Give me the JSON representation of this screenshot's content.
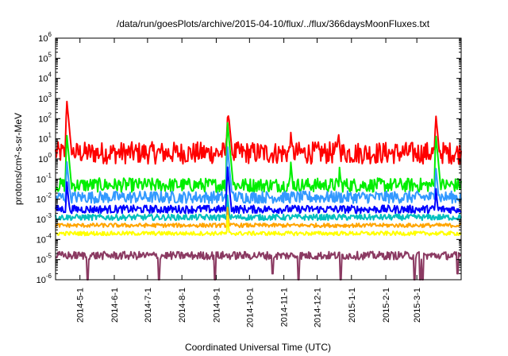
{
  "chart_data": {
    "type": "line",
    "title": "/data/run/goesPlots/archive/2015-04-10/flux/../flux/366daysMoonFluxes.txt",
    "xlabel": "Coordinated Universal Time (UTC)",
    "ylabel": "protons/cm²-s-sr-MeV",
    "yscale": "log",
    "ylim": [
      1e-06,
      1000000.0
    ],
    "xlim": [
      "2014-04-09",
      "2015-04-10"
    ],
    "y_ticks": [
      {
        "base": "10",
        "exp": "-6"
      },
      {
        "base": "10",
        "exp": "-5"
      },
      {
        "base": "10",
        "exp": "-4"
      },
      {
        "base": "10",
        "exp": "-3"
      },
      {
        "base": "10",
        "exp": "-2"
      },
      {
        "base": "10",
        "exp": "-1"
      },
      {
        "base": "10",
        "exp": "0"
      },
      {
        "base": "10",
        "exp": "1"
      },
      {
        "base": "10",
        "exp": "2"
      },
      {
        "base": "10",
        "exp": "3"
      },
      {
        "base": "10",
        "exp": "4"
      },
      {
        "base": "10",
        "exp": "5"
      },
      {
        "base": "10",
        "exp": "6"
      }
    ],
    "x_ticks": [
      {
        "label": "2014-5-1",
        "date": "2014-05-01"
      },
      {
        "label": "2014-6-1",
        "date": "2014-06-01"
      },
      {
        "label": "2014-7-1",
        "date": "2014-07-01"
      },
      {
        "label": "2014-8-1",
        "date": "2014-08-01"
      },
      {
        "label": "2014-9-1",
        "date": "2014-09-01"
      },
      {
        "label": "2014-10-1",
        "date": "2014-10-01"
      },
      {
        "label": "2014-11-1",
        "date": "2014-11-01"
      },
      {
        "label": "2014-12-1",
        "date": "2014-12-01"
      },
      {
        "label": "2015-1-1",
        "date": "2015-01-01"
      },
      {
        "label": "2015-2-1",
        "date": "2015-02-01"
      },
      {
        "label": "2015-3-1",
        "date": "2015-03-01"
      }
    ],
    "grid": false,
    "legend": "none",
    "series": [
      {
        "color": "#ff0000",
        "baseline_log10": 0.3,
        "noise_log10": 0.55,
        "peaks": [
          {
            "date": "2014-04-19",
            "y": 1000
          },
          {
            "date": "2014-09-11",
            "y": 150
          },
          {
            "date": "2014-09-12",
            "y": 200
          },
          {
            "date": "2014-11-07",
            "y": 30
          },
          {
            "date": "2014-12-20",
            "y": 30
          },
          {
            "date": "2015-03-18",
            "y": 200
          }
        ]
      },
      {
        "color": "#00ee00",
        "baseline_log10": -1.3,
        "noise_log10": 0.35,
        "peaks": [
          {
            "date": "2014-04-19",
            "y": 20
          },
          {
            "date": "2014-09-11",
            "y": 80
          },
          {
            "date": "2014-11-07",
            "y": 1
          },
          {
            "date": "2014-12-21",
            "y": 0.5
          },
          {
            "date": "2015-03-18",
            "y": 20
          }
        ]
      },
      {
        "color": "#3399ff",
        "baseline_log10": -1.9,
        "noise_log10": 0.3,
        "peaks": [
          {
            "date": "2014-04-19",
            "y": 1
          },
          {
            "date": "2014-09-11",
            "y": 5
          },
          {
            "date": "2015-03-18",
            "y": 0.5
          }
        ]
      },
      {
        "color": "#0000ff",
        "baseline_log10": -2.5,
        "noise_log10": 0.2,
        "peaks": [
          {
            "date": "2014-04-19",
            "y": 0.1
          },
          {
            "date": "2014-09-11",
            "y": 0.5
          },
          {
            "date": "2015-03-18",
            "y": 0.05
          }
        ]
      },
      {
        "color": "#00bfbf",
        "baseline_log10": -2.9,
        "noise_log10": 0.15,
        "peaks": [
          {
            "date": "2014-09-11",
            "y": 0.02
          }
        ]
      },
      {
        "color": "#ffa500",
        "baseline_log10": -3.3,
        "noise_log10": 0.1,
        "peaks": [
          {
            "date": "2014-09-11",
            "y": 0.005
          }
        ]
      },
      {
        "color": "#ffff00",
        "baseline_log10": -3.7,
        "noise_log10": 0.1,
        "peaks": [
          {
            "date": "2014-09-11",
            "y": 0.002
          }
        ]
      },
      {
        "color": "#8b3a62",
        "baseline_log10": -4.8,
        "noise_log10": 0.2,
        "dips": [
          {
            "date": "2014-05-08",
            "y": 1e-06
          },
          {
            "date": "2014-07-11",
            "y": 1e-06
          },
          {
            "date": "2014-08-31",
            "y": 1e-06
          },
          {
            "date": "2014-10-22",
            "y": 2e-06
          },
          {
            "date": "2014-11-14",
            "y": 1e-06
          },
          {
            "date": "2014-12-22",
            "y": 1e-06
          },
          {
            "date": "2015-02-27",
            "y": 1e-06
          },
          {
            "date": "2015-03-04",
            "y": 1e-06
          },
          {
            "date": "2015-03-06",
            "y": 1e-06
          },
          {
            "date": "2015-04-07",
            "y": 2e-06
          }
        ]
      }
    ]
  }
}
